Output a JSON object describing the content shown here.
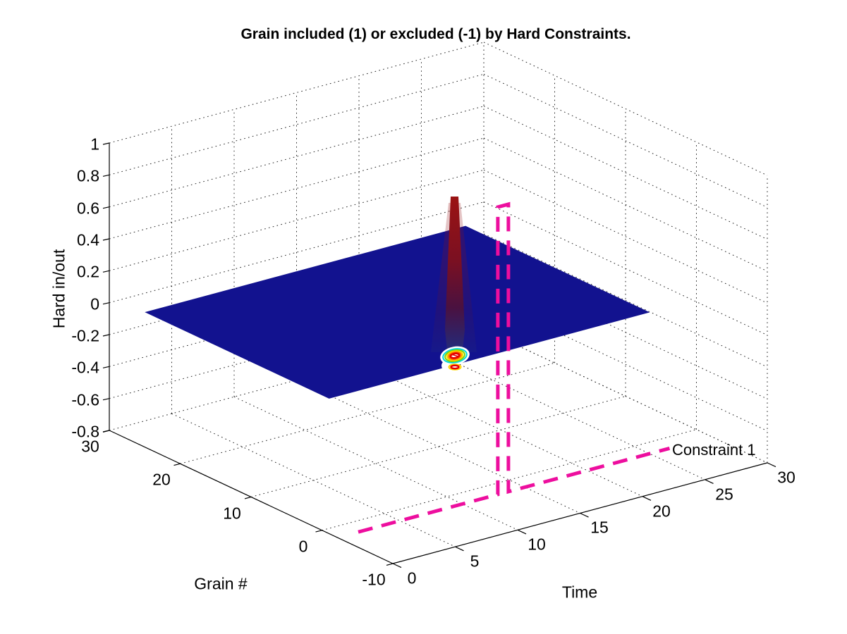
{
  "title": "Grain included (1) or excluded (-1) by Hard Constraints.",
  "axes": {
    "time": {
      "label": "Time",
      "ticks": [
        "0",
        "5",
        "10",
        "15",
        "20",
        "25",
        "30"
      ]
    },
    "grain": {
      "label": "Grain #",
      "ticks": [
        "30",
        "20",
        "10",
        "0",
        "-10"
      ]
    },
    "z": {
      "label": "Hard in/out",
      "ticks": [
        "1",
        "0.8",
        "0.6",
        "0.4",
        "0.2",
        "0",
        "-0.2",
        "-0.4",
        "-0.6",
        "-0.8"
      ]
    }
  },
  "chart_data": {
    "type": "surface3d",
    "title": "Grain included (1) or excluded (-1) by Hard Constraints.",
    "xlabel": "Time",
    "ylabel": "Grain #",
    "zlabel": "Hard in/out",
    "x_range": [
      0,
      30
    ],
    "y_range": [
      -10,
      30
    ],
    "z_range": [
      -0.8,
      1
    ],
    "x_ticks": [
      0,
      5,
      10,
      15,
      20,
      25,
      30
    ],
    "y_ticks": [
      30,
      20,
      10,
      0,
      -10
    ],
    "z_ticks": [
      1,
      0.8,
      0.6,
      0.4,
      0.2,
      0,
      -0.2,
      -0.4,
      -0.6,
      -0.8
    ],
    "grid": "dotted",
    "surface": {
      "description": "Flat dark-blue plane (hard in/out ~ 0 for all grains and times) with one narrow dark-red spike rising to +1 and a small jet-colormap crater dipping toward -1 at its base on the front edge, near time 10-13",
      "grain_range": [
        -1,
        25
      ],
      "time_range": [
        0,
        25.7
      ],
      "level": 0.045,
      "spike": {
        "time": 10,
        "grain": -1,
        "peak_value": 1
      },
      "crater": {
        "time": 10,
        "grain": -1,
        "min_value": -1
      },
      "colormap": "jet"
    },
    "annotation_series": {
      "label": "Constraint 1",
      "style": "dashed",
      "color": "#ED0E9E",
      "line_width": 5,
      "description": "Hard constraint 1 versus time at one grain row: -1 (drawn clipped at z=-0.8) for all times except a +1 pulse near time 13",
      "grain_row": -2.2,
      "time_start": 1.66,
      "pulse_start": 12.84,
      "pulse_end": 13.69,
      "time_end": 26.6,
      "base_level": -0.8,
      "pulse_level": 1
    }
  },
  "colors": {
    "background": "#ffffff",
    "axis": "#000000",
    "grid": "#222222",
    "text": "#000000",
    "surface": "#12128F",
    "spike_top": "#9B1313",
    "spike_mid": "#7A1022",
    "spike_low": "#4A1140",
    "spike_base": "#232B7C",
    "constraint": "#ED0E9E",
    "crater_rings": [
      "#00D8D8",
      "#7FD400",
      "#FFD800",
      "#FF7800",
      "#E60000"
    ]
  }
}
